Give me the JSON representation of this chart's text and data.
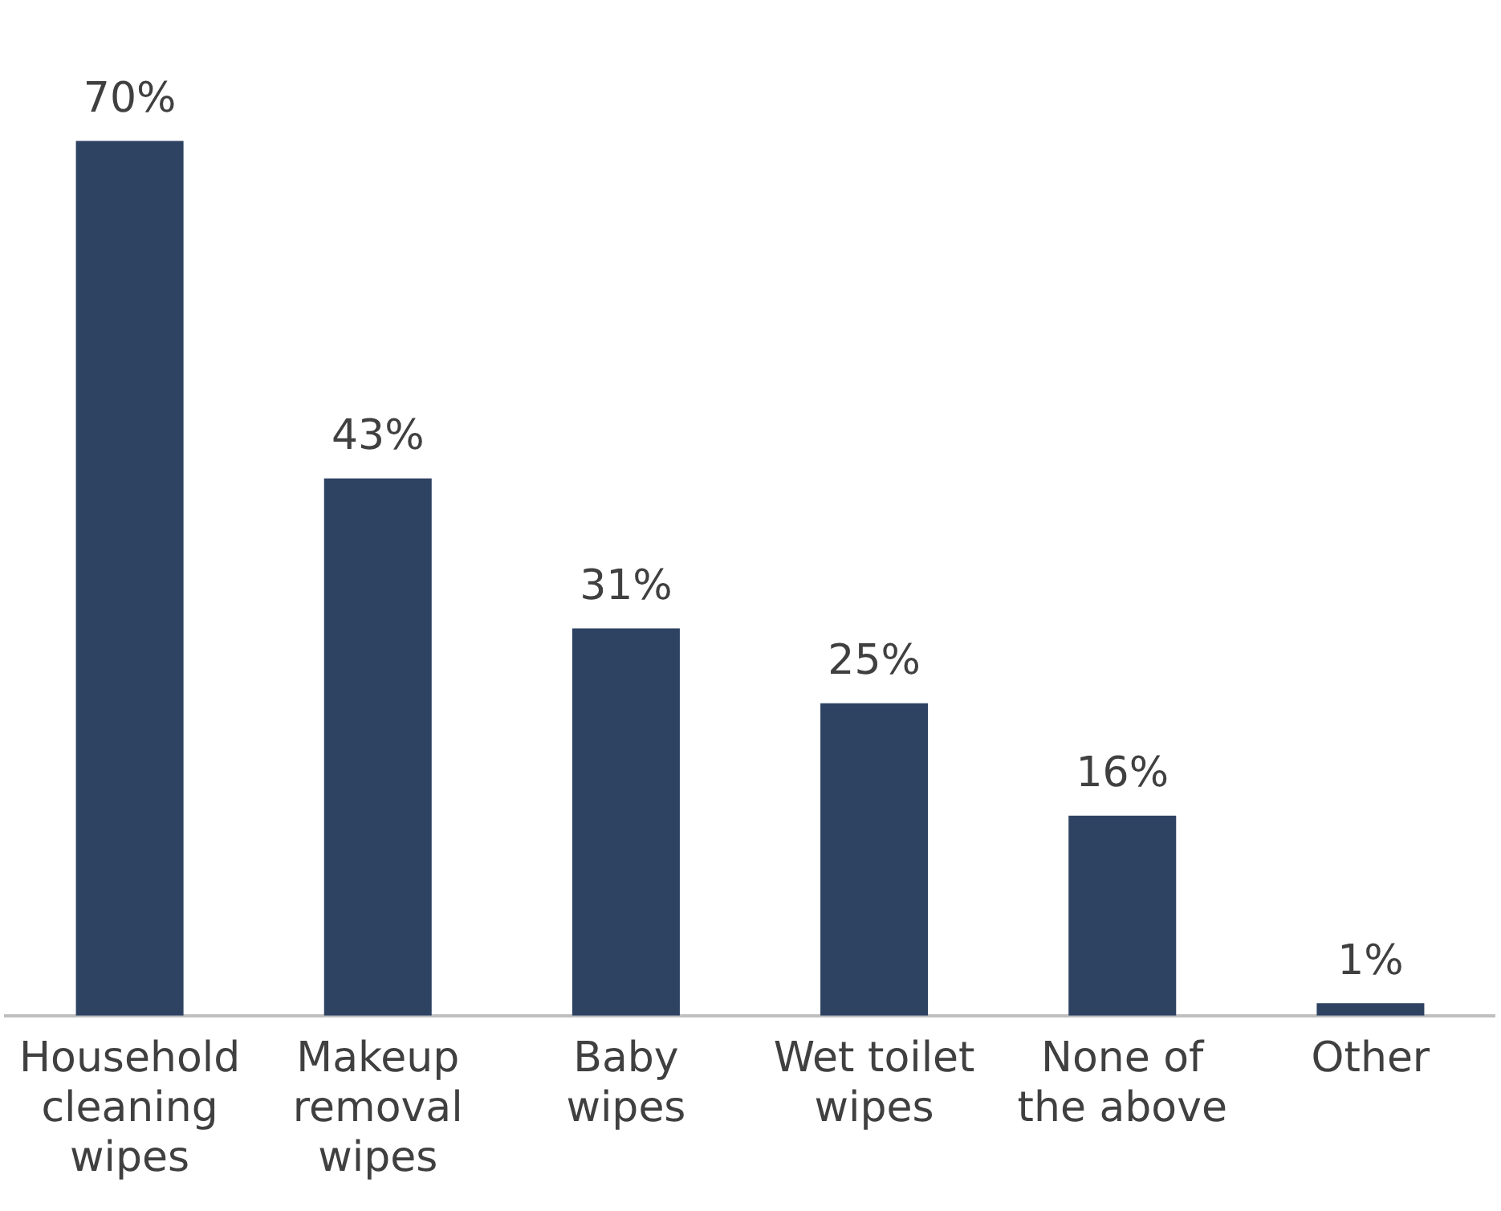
{
  "chart_data": {
    "type": "bar",
    "categories": [
      "Household cleaning wipes",
      "Makeup removal wipes",
      "Baby wipes",
      "Wet toilet wipes",
      "None of the above",
      "Other"
    ],
    "values": [
      70,
      43,
      31,
      25,
      16,
      1
    ],
    "value_labels": [
      "70%",
      "43%",
      "31%",
      "25%",
      "16%",
      "1%"
    ],
    "color": "#2e4262",
    "legend": false
  }
}
